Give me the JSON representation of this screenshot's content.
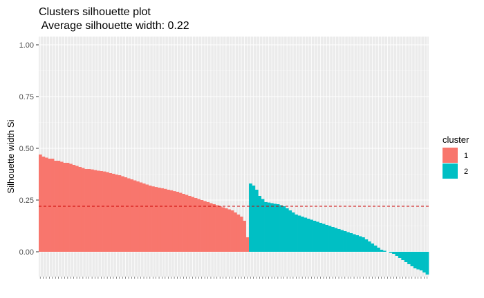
{
  "chart_data": {
    "type": "bar",
    "title": "Clusters silhouette plot",
    "subtitle": " Average silhouette width: 0.22",
    "xlabel": "",
    "ylabel": "Silhouette width Si",
    "ylim": [
      -0.12,
      1.04
    ],
    "yticks": [
      "0.00",
      "0.25",
      "0.50",
      "0.75",
      "1.00"
    ],
    "average_silhouette": 0.22,
    "grid": true,
    "legend": {
      "title": "cluster",
      "placement": "right"
    },
    "series": [
      {
        "name": "1",
        "color": "#F8766D",
        "values": [
          0.47,
          0.46,
          0.455,
          0.45,
          0.45,
          0.44,
          0.44,
          0.435,
          0.43,
          0.43,
          0.425,
          0.42,
          0.415,
          0.41,
          0.405,
          0.4,
          0.4,
          0.398,
          0.395,
          0.392,
          0.39,
          0.388,
          0.385,
          0.38,
          0.377,
          0.373,
          0.37,
          0.365,
          0.36,
          0.355,
          0.35,
          0.345,
          0.34,
          0.335,
          0.33,
          0.325,
          0.32,
          0.316,
          0.313,
          0.31,
          0.307,
          0.304,
          0.3,
          0.297,
          0.293,
          0.29,
          0.285,
          0.28,
          0.275,
          0.27,
          0.265,
          0.26,
          0.255,
          0.25,
          0.245,
          0.24,
          0.235,
          0.23,
          0.225,
          0.22,
          0.215,
          0.21,
          0.205,
          0.2,
          0.19,
          0.18,
          0.17,
          0.15,
          0.07
        ]
      },
      {
        "name": "2",
        "color": "#00BFC4",
        "values": [
          0.33,
          0.32,
          0.3,
          0.27,
          0.255,
          0.24,
          0.238,
          0.235,
          0.232,
          0.23,
          0.225,
          0.22,
          0.21,
          0.2,
          0.19,
          0.18,
          0.175,
          0.17,
          0.165,
          0.16,
          0.155,
          0.15,
          0.145,
          0.14,
          0.135,
          0.13,
          0.125,
          0.12,
          0.115,
          0.11,
          0.105,
          0.1,
          0.095,
          0.09,
          0.085,
          0.08,
          0.075,
          0.07,
          0.06,
          0.05,
          0.04,
          0.03,
          0.02,
          0.01,
          0.005,
          0.0,
          -0.005,
          -0.01,
          -0.02,
          -0.03,
          -0.04,
          -0.05,
          -0.06,
          -0.07,
          -0.08,
          -0.085,
          -0.09,
          -0.1,
          -0.11
        ]
      }
    ]
  }
}
